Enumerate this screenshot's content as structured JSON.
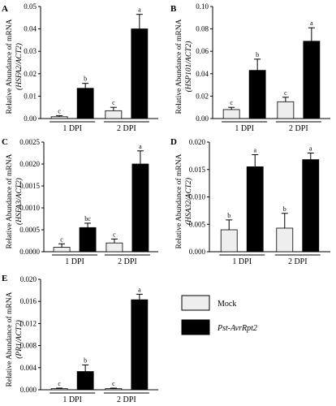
{
  "colors": {
    "mock": "#eeeeee",
    "pst": "#000000",
    "axis": "#000000"
  },
  "legend": [
    {
      "key": "mock",
      "label": "Mock",
      "italic": false
    },
    {
      "key": "pst",
      "label": "Pst-AvrRpt2",
      "italic": true
    }
  ],
  "chart_data": [
    {
      "panel": "A",
      "type": "bar",
      "ylabel": "Relative Abundance of mRNA",
      "ylabel_gene": "(HSFA2/ACT2)",
      "ylim": [
        0,
        0.05
      ],
      "yticks": [
        0,
        0.01,
        0.02,
        0.03,
        0.04,
        0.05
      ],
      "ytick_labels": [
        "0.00",
        "0.01",
        "0.02",
        "0.03",
        "0.04",
        "0.05"
      ],
      "categories": [
        "1 DPI",
        "2 DPI"
      ],
      "series": [
        {
          "name": "Mock",
          "color_key": "mock",
          "values": [
            0.0008,
            0.0035
          ],
          "errors": [
            0.0005,
            0.0015
          ],
          "letters": [
            "c",
            "c"
          ]
        },
        {
          "name": "Pst-AvrRpt2",
          "color_key": "pst",
          "values": [
            0.0135,
            0.04
          ],
          "errors": [
            0.0022,
            0.0065
          ],
          "letters": [
            "b",
            "a"
          ]
        }
      ]
    },
    {
      "panel": "B",
      "type": "bar",
      "ylabel": "Relative Abundance of mRNA",
      "ylabel_gene": "(HSP101/ACT2)",
      "ylim": [
        0,
        0.1
      ],
      "yticks": [
        0,
        0.02,
        0.04,
        0.06,
        0.08,
        0.1
      ],
      "ytick_labels": [
        "0.00",
        "0.02",
        "0.04",
        "0.06",
        "0.08",
        "0.10"
      ],
      "categories": [
        "1 DPI",
        "2 DPI"
      ],
      "series": [
        {
          "name": "Mock",
          "color_key": "mock",
          "values": [
            0.008,
            0.015
          ],
          "errors": [
            0.002,
            0.004
          ],
          "letters": [
            "c",
            "c"
          ]
        },
        {
          "name": "Pst-AvrRpt2",
          "color_key": "pst",
          "values": [
            0.043,
            0.069
          ],
          "errors": [
            0.01,
            0.012
          ],
          "letters": [
            "b",
            "a"
          ]
        }
      ]
    },
    {
      "panel": "C",
      "type": "bar",
      "ylabel": "Relative Abundance of mRNA",
      "ylabel_gene": "(HSFA3/ACT2)",
      "ylim": [
        0,
        0.0025
      ],
      "yticks": [
        0,
        0.0005,
        0.001,
        0.0015,
        0.002,
        0.0025
      ],
      "ytick_labels": [
        "0.0000",
        "0.0005",
        "0.0010",
        "0.0015",
        "0.0020",
        "0.0025"
      ],
      "categories": [
        "1 DPI",
        "2 DPI"
      ],
      "series": [
        {
          "name": "Mock",
          "color_key": "mock",
          "values": [
            0.0001,
            0.0002
          ],
          "errors": [
            8e-05,
            9e-05
          ],
          "letters": [
            "c",
            "c"
          ]
        },
        {
          "name": "Pst-AvrRpt2",
          "color_key": "pst",
          "values": [
            0.00055,
            0.002
          ],
          "errors": [
            0.0001,
            0.0003
          ],
          "letters": [
            "bc",
            "a"
          ]
        }
      ]
    },
    {
      "panel": "D",
      "type": "bar",
      "ylabel": "Relative Abundance of mRNA",
      "ylabel_gene": "(HSA32/ACT2)",
      "ylim": [
        0,
        0.02
      ],
      "yticks": [
        0,
        0.005,
        0.01,
        0.015,
        0.02
      ],
      "ytick_labels": [
        "0.000",
        "0.005",
        "0.010",
        "0.015",
        "0.020"
      ],
      "categories": [
        "1 DPI",
        "2 DPI"
      ],
      "series": [
        {
          "name": "Mock",
          "color_key": "mock",
          "values": [
            0.004,
            0.0043
          ],
          "errors": [
            0.0018,
            0.0027
          ],
          "letters": [
            "b",
            "b"
          ]
        },
        {
          "name": "Pst-AvrRpt2",
          "color_key": "pst",
          "values": [
            0.0155,
            0.0168
          ],
          "errors": [
            0.0022,
            0.0012
          ],
          "letters": [
            "a",
            "a"
          ]
        }
      ]
    },
    {
      "panel": "E",
      "type": "bar",
      "ylabel": "Relative Abundance of mRNA",
      "ylabel_gene": "(PR1/ACT2)",
      "ylim": [
        0,
        0.02
      ],
      "yticks": [
        0,
        0.004,
        0.008,
        0.012,
        0.016,
        0.02
      ],
      "ytick_labels": [
        "0.000",
        "0.004",
        "0.008",
        "0.012",
        "0.016",
        "0.020"
      ],
      "categories": [
        "1 DPI",
        "2 DPI"
      ],
      "series": [
        {
          "name": "Mock",
          "color_key": "mock",
          "values": [
            0.0002,
            0.0002
          ],
          "errors": [
            0.0001,
            0.0001
          ],
          "letters": [
            "c",
            "c"
          ]
        },
        {
          "name": "Pst-AvrRpt2",
          "color_key": "pst",
          "values": [
            0.0033,
            0.0163
          ],
          "errors": [
            0.0012,
            0.001
          ],
          "letters": [
            "b",
            "a"
          ]
        }
      ]
    }
  ]
}
